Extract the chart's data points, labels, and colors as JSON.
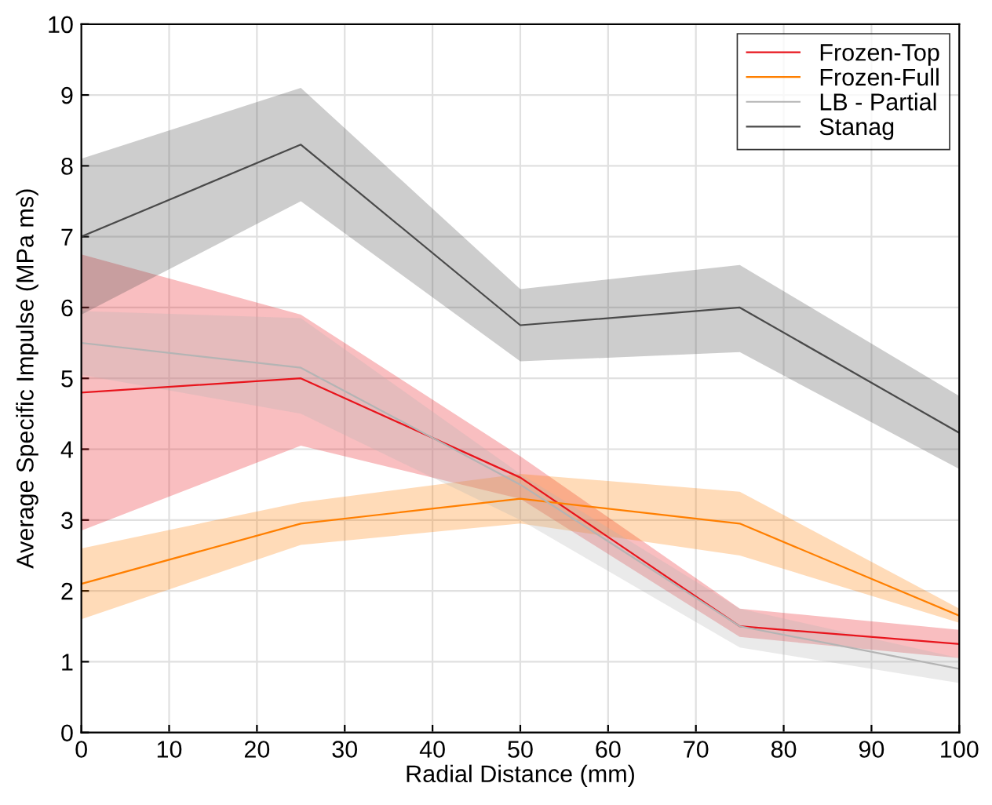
{
  "chart_data": {
    "type": "line",
    "xlabel": "Radial Distance (mm)",
    "ylabel": "Average Specific Impulse (MPa ms)",
    "x": [
      0,
      25,
      50,
      75,
      100
    ],
    "series": [
      {
        "name": "Frozen-Top",
        "color": "#e8141c",
        "values": [
          4.8,
          5.0,
          3.6,
          1.5,
          1.25
        ],
        "lower": [
          2.85,
          4.05,
          3.3,
          1.35,
          1.05
        ],
        "upper": [
          6.75,
          5.9,
          3.9,
          1.75,
          1.45
        ]
      },
      {
        "name": "Frozen-Full",
        "color": "#ff7f00",
        "values": [
          2.1,
          2.95,
          3.3,
          2.95,
          1.65
        ],
        "lower": [
          1.6,
          2.65,
          2.95,
          2.5,
          1.55
        ],
        "upper": [
          2.6,
          3.25,
          3.65,
          3.4,
          1.75
        ]
      },
      {
        "name": "LB - Partial",
        "color": "#b4b4b4",
        "values": [
          5.5,
          5.15,
          3.5,
          1.5,
          0.9
        ],
        "lower": [
          5.05,
          4.5,
          3.0,
          1.2,
          0.7
        ],
        "upper": [
          5.95,
          5.85,
          3.65,
          1.75,
          1.05
        ]
      },
      {
        "name": "Stanag",
        "color": "#4a4a4a",
        "values": [
          7.0,
          8.3,
          5.75,
          6.0,
          4.23
        ],
        "lower": [
          5.9,
          7.5,
          5.24,
          5.37,
          3.72
        ],
        "upper": [
          8.1,
          9.1,
          6.26,
          6.6,
          4.75
        ]
      }
    ],
    "xlim": [
      0,
      100
    ],
    "xticks": [
      0,
      10,
      20,
      30,
      40,
      50,
      60,
      70,
      80,
      90,
      100
    ],
    "ylim": [
      0,
      10
    ],
    "yticks": [
      0,
      1,
      2,
      3,
      4,
      5,
      6,
      7,
      8,
      9,
      10
    ],
    "grid": true,
    "legend": "top right",
    "marker": "none",
    "line_style": "solid"
  }
}
